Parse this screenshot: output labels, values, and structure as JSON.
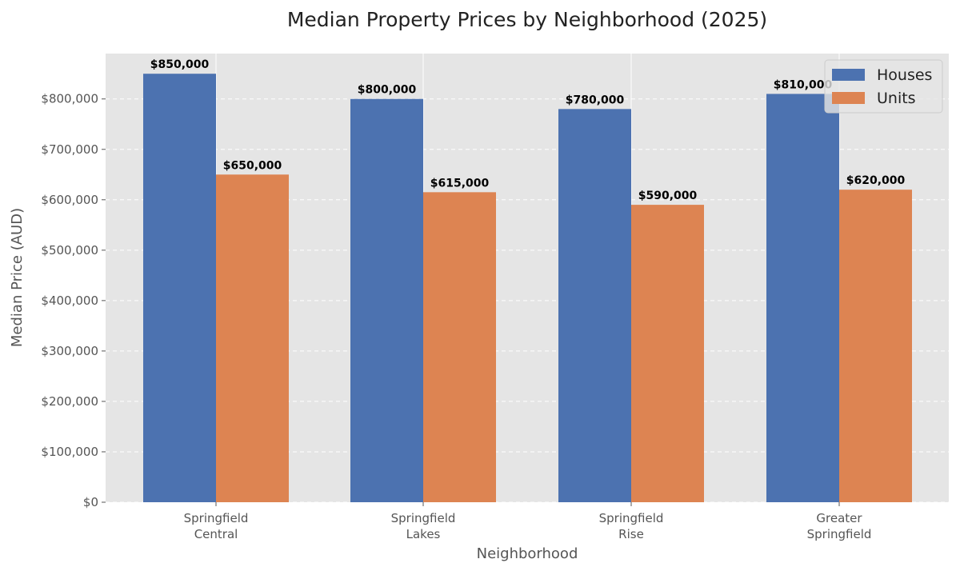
{
  "chart_data": {
    "type": "bar",
    "title": "Median Property Prices by Neighborhood (2025)",
    "xlabel": "Neighborhood",
    "ylabel": "Median Price (AUD)",
    "categories": [
      [
        "Springfield",
        "Central"
      ],
      [
        "Springfield",
        "Lakes"
      ],
      [
        "Springfield",
        "Rise"
      ],
      [
        "Greater",
        "Springfield"
      ]
    ],
    "series": [
      {
        "name": "Houses",
        "color": "#4c72b0",
        "values": [
          850000,
          800000,
          780000,
          810000
        ],
        "labels": [
          "$850,000",
          "$800,000",
          "$780,000",
          "$810,000"
        ]
      },
      {
        "name": "Units",
        "color": "#dd8452",
        "values": [
          650000,
          615000,
          590000,
          620000
        ],
        "labels": [
          "$650,000",
          "$615,000",
          "$590,000",
          "$620,000"
        ]
      }
    ],
    "ylim": [
      0,
      890000
    ],
    "yticks": [
      0,
      100000,
      200000,
      300000,
      400000,
      500000,
      600000,
      700000,
      800000
    ],
    "ytick_labels": [
      "$0",
      "$100,000",
      "$200,000",
      "$300,000",
      "$400,000",
      "$500,000",
      "$600,000",
      "$700,000",
      "$800,000"
    ],
    "grid": "y-dashed",
    "legend_position": "top-right",
    "background": "#e5e5e5"
  }
}
